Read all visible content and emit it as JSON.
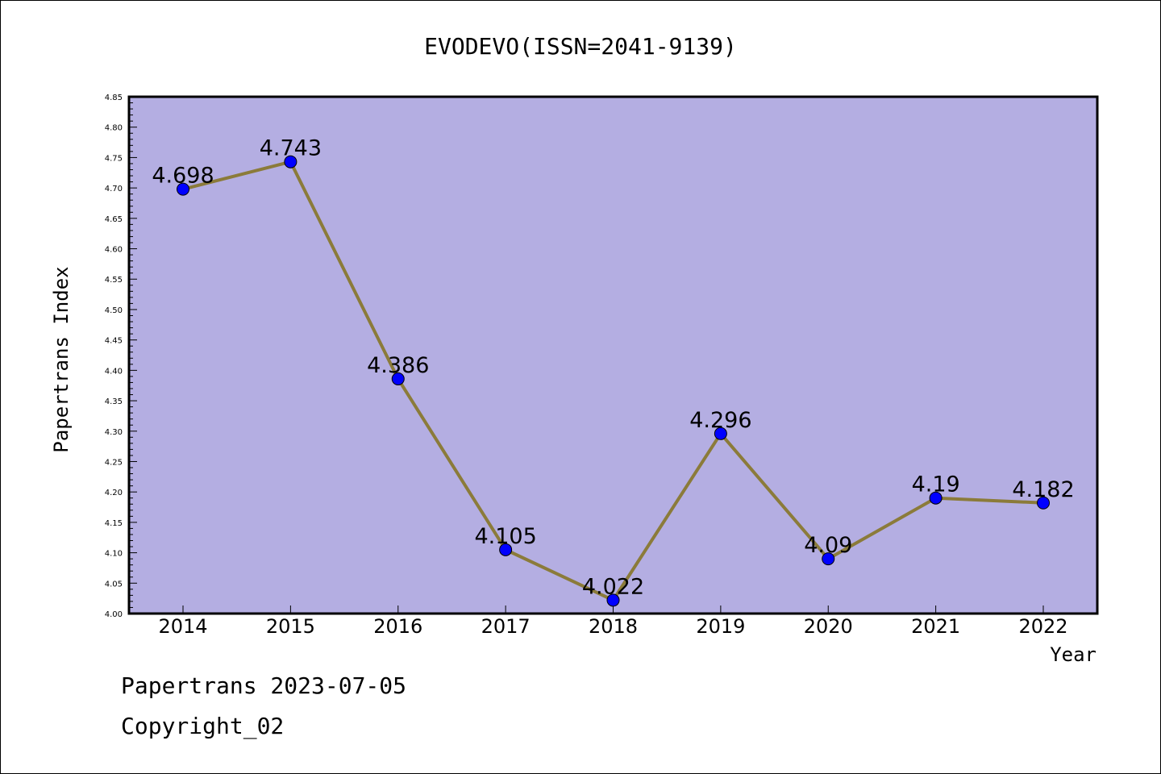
{
  "chart_data": {
    "type": "line",
    "title": "EVODEVO(ISSN=2041-9139)",
    "xlabel": "Year",
    "ylabel": "Papertrans Index",
    "categories": [
      "2014",
      "2015",
      "2016",
      "2017",
      "2018",
      "2019",
      "2020",
      "2021",
      "2022"
    ],
    "series": [
      {
        "values": [
          4.698,
          4.743,
          4.386,
          4.105,
          4.022,
          4.296,
          4.09,
          4.19,
          4.182
        ],
        "labels": [
          "4.698",
          "4.743",
          "4.386",
          "4.105",
          "4.022",
          "4.296",
          "4.09",
          "4.19",
          "4.182"
        ]
      }
    ],
    "ylim": [
      4.0,
      4.85
    ],
    "yticks": [
      "4.00",
      "4.05",
      "4.10",
      "4.15",
      "4.20",
      "4.25",
      "4.30",
      "4.35",
      "4.40",
      "4.45",
      "4.50",
      "4.55",
      "4.60",
      "4.65",
      "4.70",
      "4.75",
      "4.80",
      "4.85"
    ],
    "grid": false,
    "colors": {
      "plot_background": "#b4aee2",
      "line": "#8b7b3a",
      "marker": "#0000ff"
    }
  },
  "footer": {
    "line1": "Papertrans 2023-07-05",
    "line2": "Copyright_02"
  }
}
